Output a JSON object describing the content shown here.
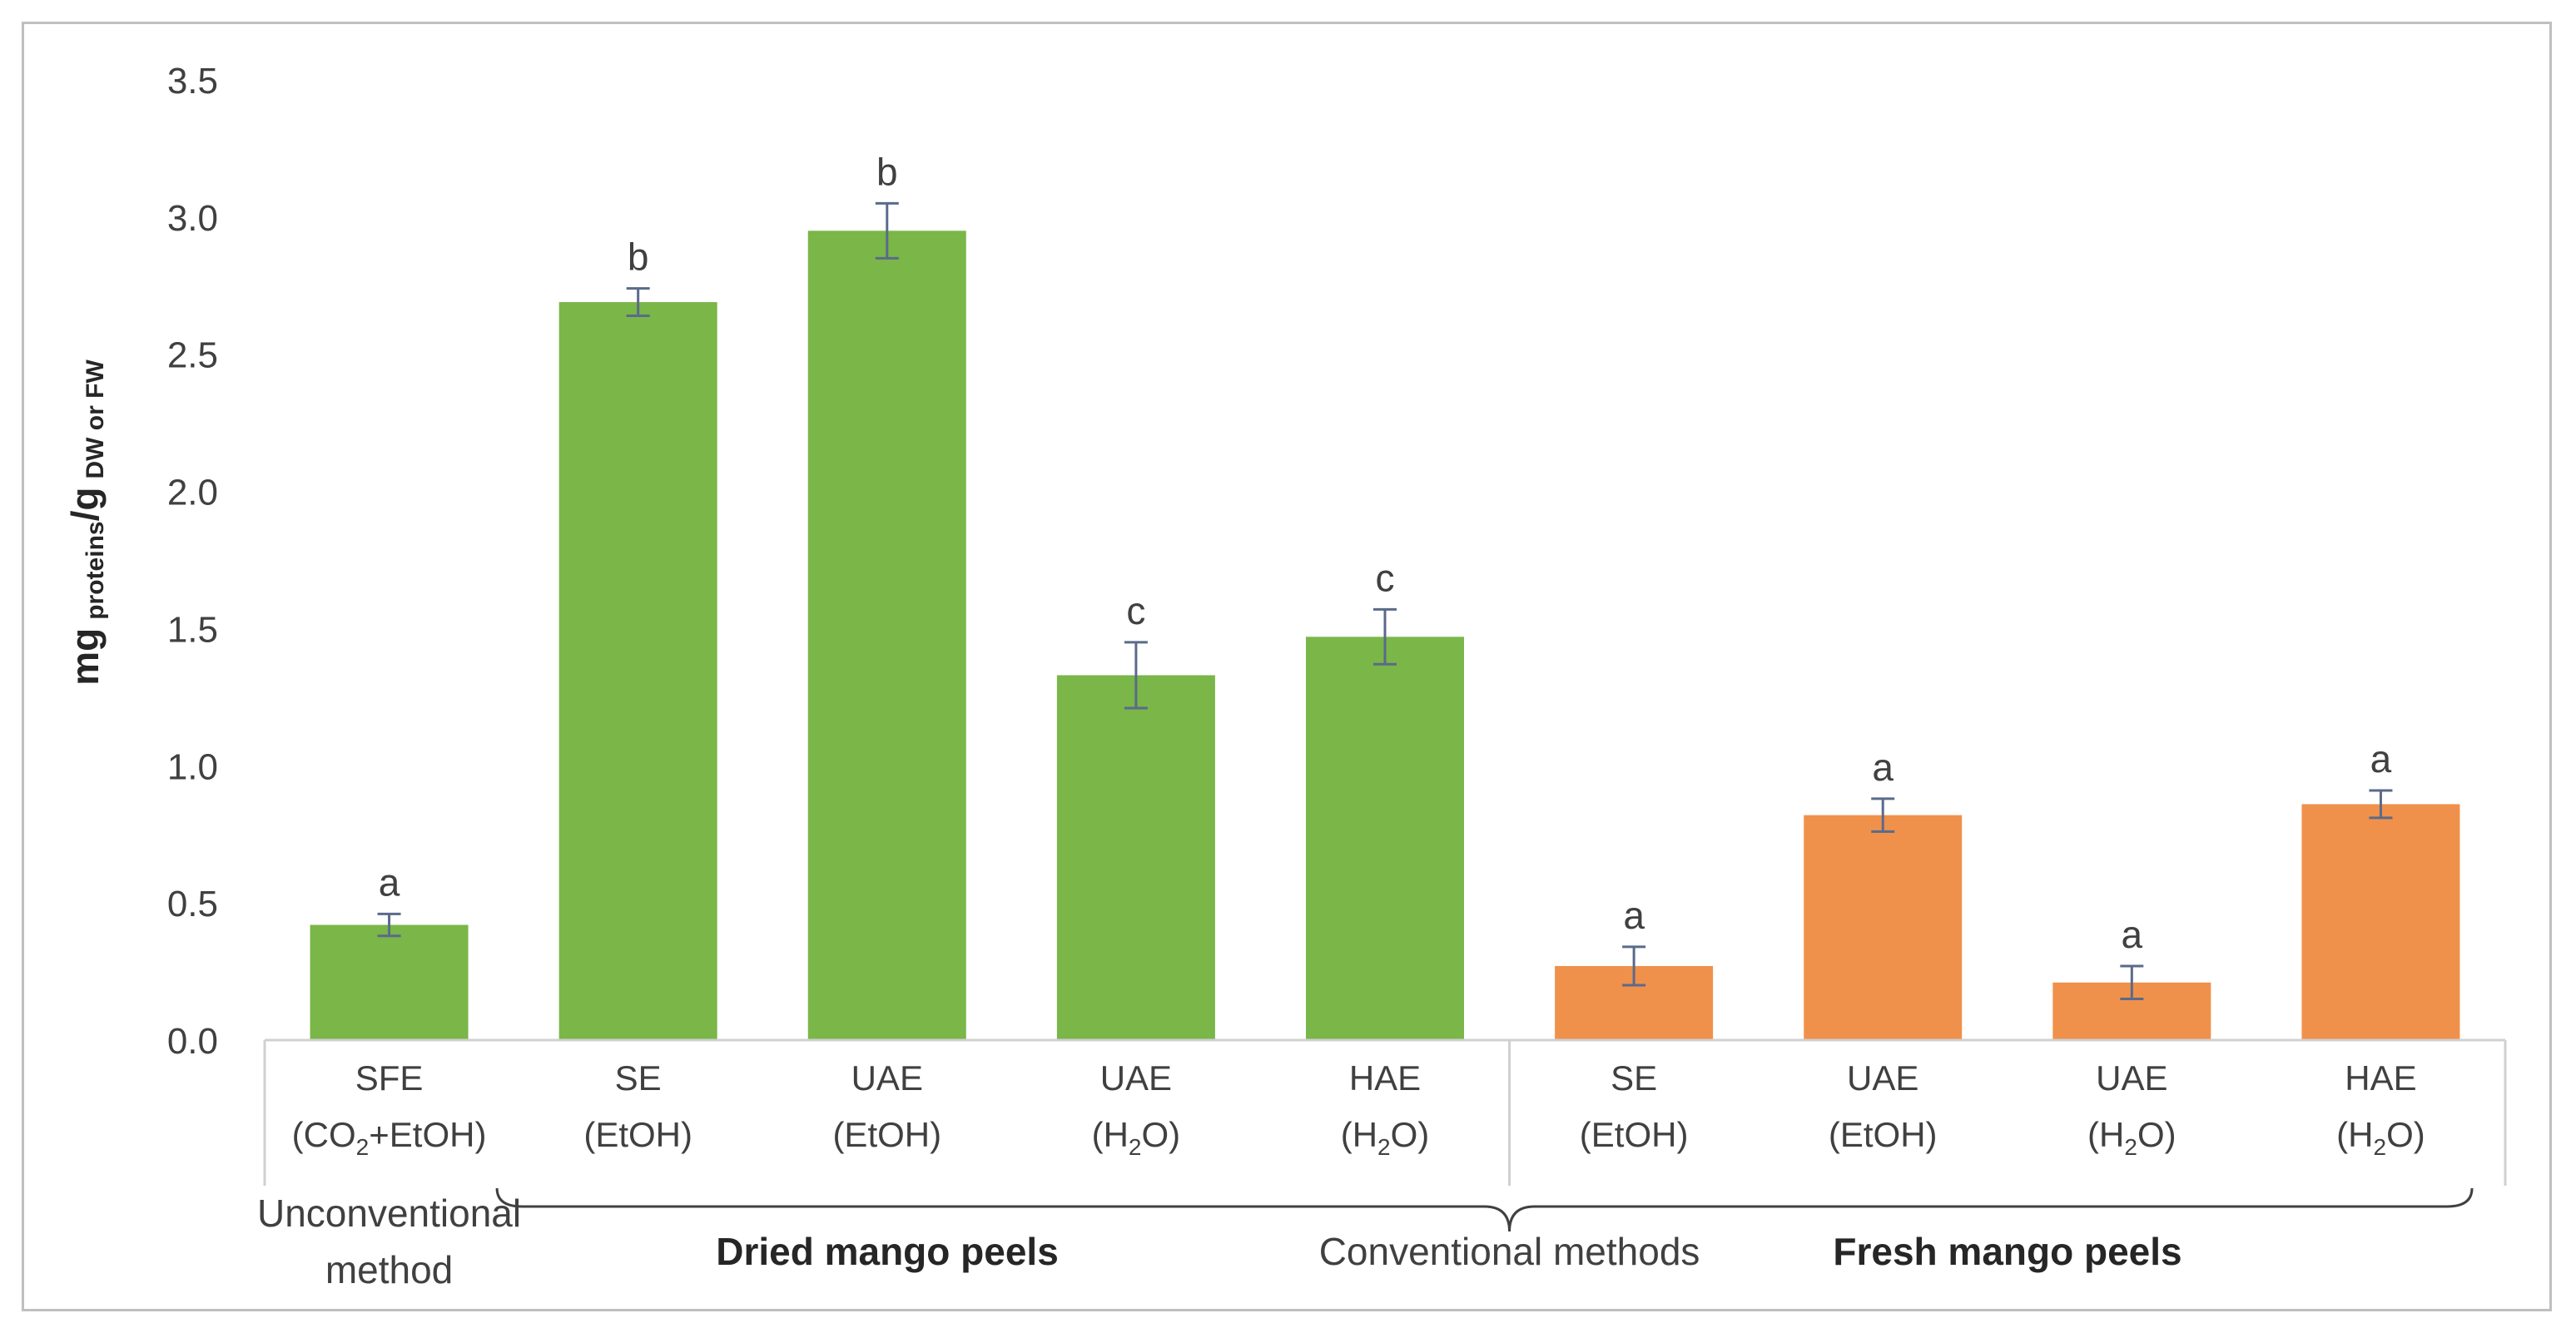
{
  "chart_data": {
    "type": "bar",
    "ylabel": {
      "main": "mg",
      "sub1": "proteins",
      "slash": "/g",
      "sub2": "DW or FW"
    },
    "ylim": [
      0,
      3.5
    ],
    "yticks": [
      "0.0",
      "0.5",
      "1.0",
      "1.5",
      "2.0",
      "2.5",
      "3.0",
      "3.5"
    ],
    "grid": false,
    "categories": [
      {
        "line1": "SFE",
        "line2": "(CO",
        "sub": "2",
        "line2b": "+EtOH)"
      },
      {
        "line1": "SE",
        "line2": "(EtOH)",
        "sub": "",
        "line2b": ""
      },
      {
        "line1": "UAE",
        "line2": "(EtOH)",
        "sub": "",
        "line2b": ""
      },
      {
        "line1": "UAE",
        "line2": "(H",
        "sub": "2",
        "line2b": "O)"
      },
      {
        "line1": "HAE",
        "line2": "(H",
        "sub": "2",
        "line2b": "O)"
      },
      {
        "line1": "SE",
        "line2": "(EtOH)",
        "sub": "",
        "line2b": ""
      },
      {
        "line1": "UAE",
        "line2": "(EtOH)",
        "sub": "",
        "line2b": ""
      },
      {
        "line1": "UAE",
        "line2": "(H",
        "sub": "2",
        "line2b": "O)"
      },
      {
        "line1": "HAE",
        "line2": "(H",
        "sub": "2",
        "line2b": "O)"
      }
    ],
    "values": [
      0.42,
      2.69,
      2.95,
      1.33,
      1.47,
      0.27,
      0.82,
      0.21,
      0.86
    ],
    "errors": [
      0.04,
      0.05,
      0.1,
      0.12,
      0.1,
      0.07,
      0.06,
      0.06,
      0.05
    ],
    "letters": [
      "a",
      "b",
      "b",
      "c",
      "c",
      "a",
      "a",
      "a",
      "a"
    ],
    "groups": [
      "dried",
      "dried",
      "dried",
      "dried",
      "dried",
      "fresh",
      "fresh",
      "fresh",
      "fresh"
    ],
    "colors": {
      "dried": "#7ab648",
      "fresh": "#f0914b",
      "error": "#5a6a8a",
      "axis": "#d0d0d0",
      "text": "#404040"
    },
    "group_labels": {
      "unconventional_line1": "Unconventional",
      "unconventional_line2": "method",
      "dried": "Dried mango peels",
      "conventional": "Conventional methods",
      "fresh": "Fresh mango peels"
    }
  }
}
